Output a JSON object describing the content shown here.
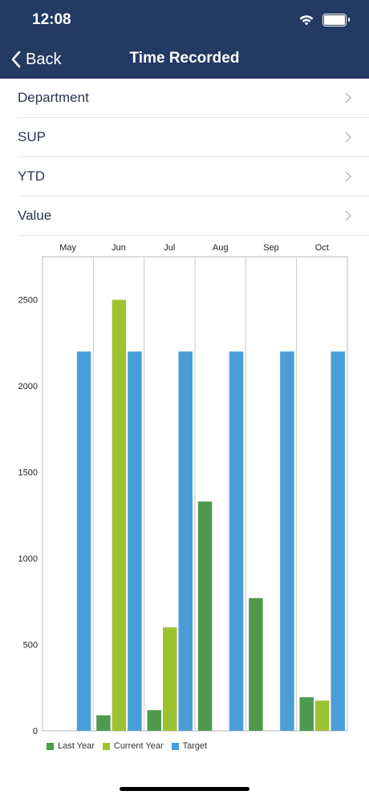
{
  "status_bar": {
    "time": "12:08",
    "icons": [
      "wifi-icon",
      "battery-icon"
    ]
  },
  "nav": {
    "back_label": "Back",
    "title": "Time Recorded"
  },
  "list": {
    "items": [
      {
        "label": "Department"
      },
      {
        "label": "SUP"
      },
      {
        "label": "YTD"
      },
      {
        "label": "Value"
      }
    ]
  },
  "colors": {
    "header_bg": "#233a63",
    "last_year": "#4f9a4f",
    "current_year": "#9dc22f",
    "target": "#4a9ed8"
  },
  "chart_data": {
    "type": "bar",
    "categories": [
      "May",
      "Jun",
      "Jul",
      "Aug",
      "Sep",
      "Oct"
    ],
    "ylim": [
      0,
      2750
    ],
    "yticks": [
      0,
      500,
      1000,
      1500,
      2000,
      2500
    ],
    "series": [
      {
        "name": "Last Year",
        "color": "#4f9a4f",
        "values": [
          null,
          90,
          120,
          1330,
          770,
          195
        ]
      },
      {
        "name": "Current Year",
        "color": "#9dc22f",
        "values": [
          null,
          2500,
          600,
          null,
          null,
          175
        ]
      },
      {
        "name": "Target",
        "color": "#4a9ed8",
        "values": [
          2200,
          2200,
          2200,
          2200,
          2200,
          2200
        ]
      }
    ],
    "legend_position": "bottom-left",
    "grid": "vertical category separators"
  }
}
